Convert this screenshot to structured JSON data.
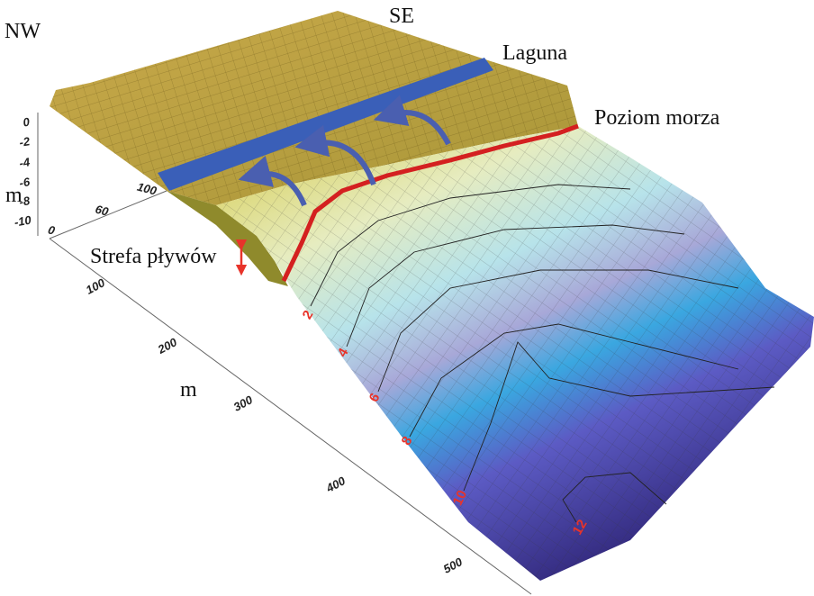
{
  "labels": {
    "nw": "NW",
    "se": "SE",
    "lagoon": "Laguna",
    "sea_level": "Poziom morza",
    "tidal_zone": "Strefa pływów"
  },
  "vertical_axis": {
    "label": "m",
    "ticks": [
      0,
      -2,
      -4,
      -6,
      -8,
      -10
    ]
  },
  "cross_axis": {
    "ticks": [
      0,
      60,
      100
    ]
  },
  "distance_axis": {
    "label": "m",
    "ticks": [
      100,
      200,
      300,
      400,
      500
    ]
  },
  "contours": {
    "labels": [
      2,
      4,
      6,
      8,
      10,
      12
    ]
  }
}
